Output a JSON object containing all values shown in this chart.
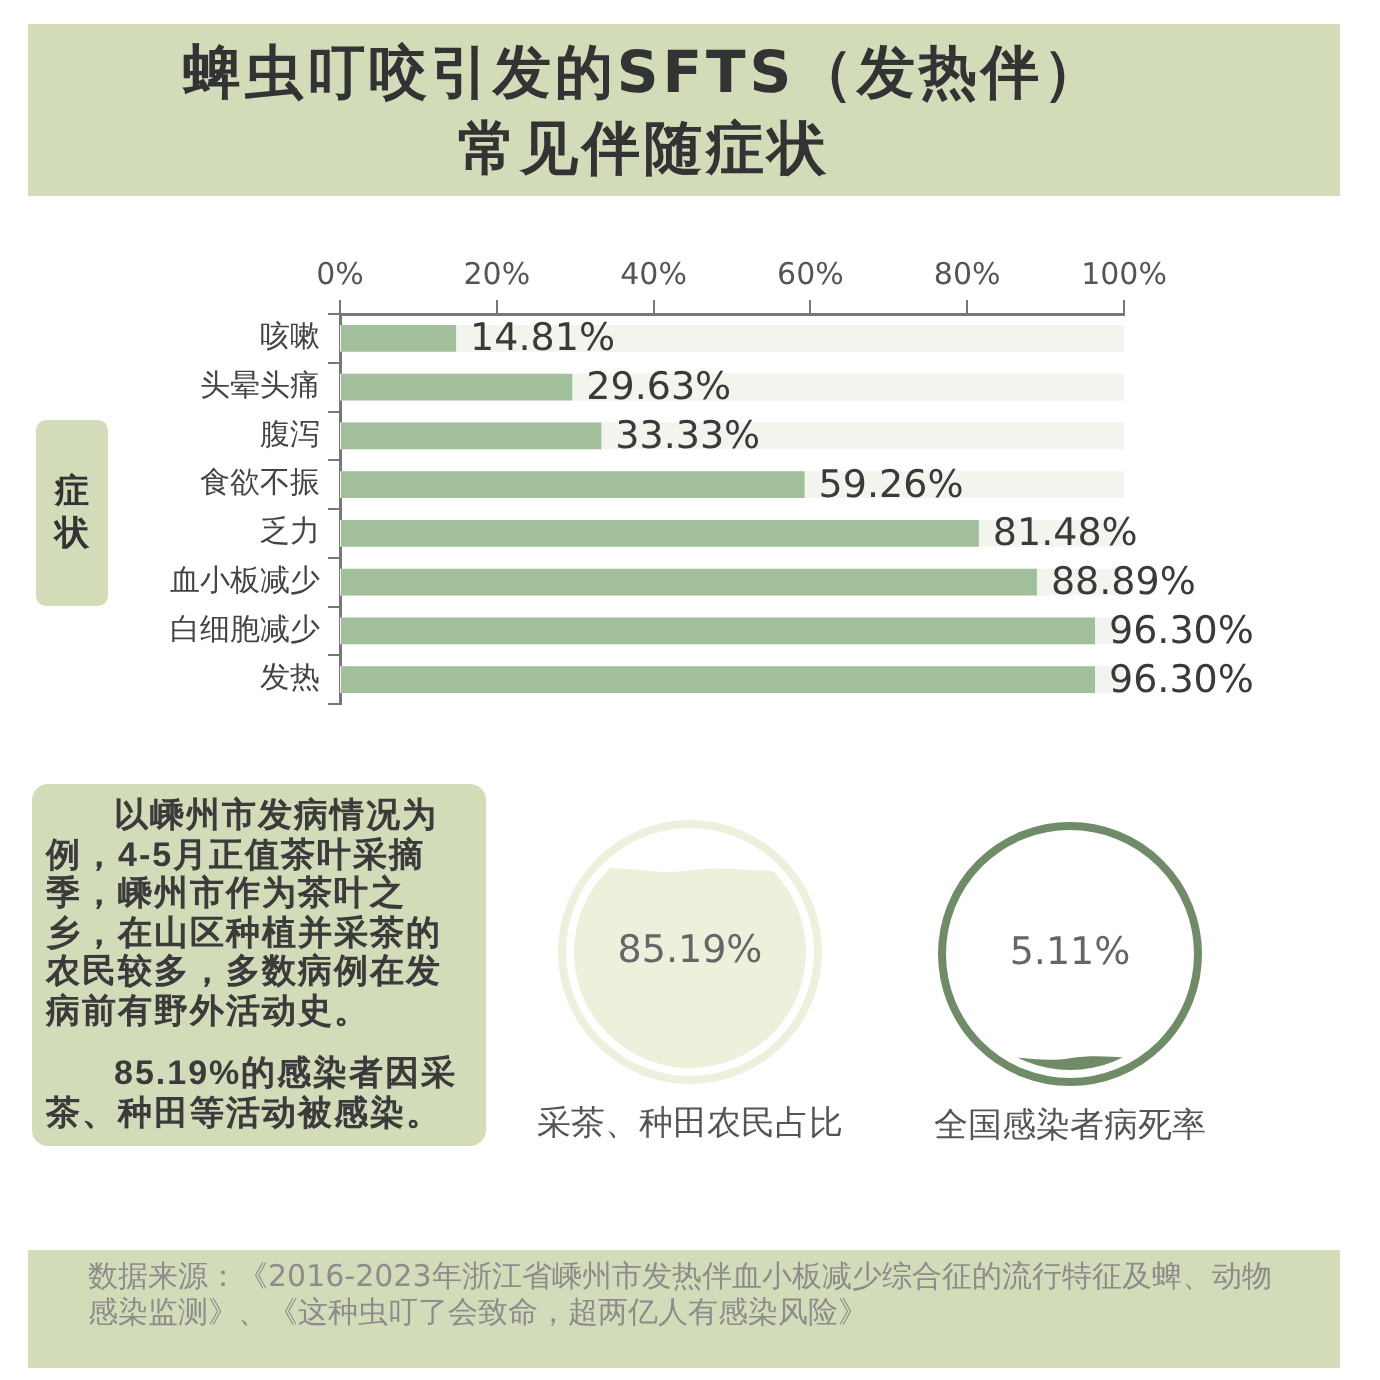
{
  "chart_data": [
    {
      "type": "bar",
      "orientation": "horizontal",
      "title": "蜱虫叮咬引发的SFTS（发热伴）常见伴随症状",
      "ylabel": "症状",
      "categories": [
        "咳嗽",
        "头晕头痛",
        "腹泻",
        "食欲不振",
        "乏力",
        "血小板减少",
        "白细胞减少",
        "发热"
      ],
      "values": [
        14.81,
        29.63,
        33.33,
        59.26,
        81.48,
        88.89,
        96.3,
        96.3
      ],
      "color": "#a2bf9b",
      "value_labels": [
        "14.81%",
        "29.63%",
        "33.33%",
        "59.26%",
        "81.48%",
        "88.89%",
        "96.30%",
        "96.30%"
      ],
      "xlim": [
        0,
        100
      ],
      "xticks": [
        {
          "value": 0,
          "label": "0%"
        },
        {
          "value": 20,
          "label": "20%"
        },
        {
          "value": 40,
          "label": "40%"
        },
        {
          "value": 60,
          "label": "60%"
        },
        {
          "value": 80,
          "label": "80%"
        },
        {
          "value": 100,
          "label": "100%"
        }
      ]
    },
    {
      "type": "other",
      "annotations": [
        "以嵊州市发病情况为例，4-5月正值茶叶采摘季，嵊州市作为茶叶之乡，在山区种植并采茶的农民较多，多数病例在发病前有野外活动史。",
        "85.19%的感染者因采茶、种田等活动被感染。"
      ]
    },
    {
      "type": "other",
      "values": [
        85.19
      ],
      "value_labels": [
        "85.19%"
      ],
      "xlabel": "采茶、种田农民占比",
      "color": "#eef0dc"
    },
    {
      "type": "other",
      "values": [
        5.11
      ],
      "value_labels": [
        "5.11%"
      ],
      "xlabel": "全国感染者病死率",
      "color": "#6f8b67"
    },
    {
      "type": "other",
      "annotations": [
        "数据来源：《2016-2023年浙江省嵊州市发热伴血小板减少综合征的流行特征及蜱、动物感染监测》、《这种虫叮了会致命，超两亿人有感染风险》"
      ]
    }
  ]
}
